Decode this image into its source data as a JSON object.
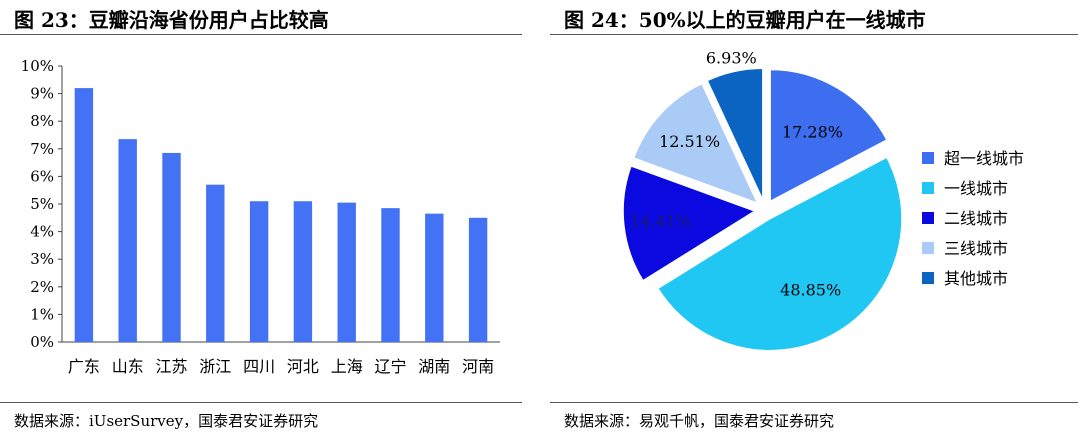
{
  "left": {
    "title": "图 23：豆瓣沿海省份用户占比较高",
    "source": "数据来源：iUserSurvey，国泰君安证券研究"
  },
  "right": {
    "title": "图 24：50%以上的豆瓣用户在一线城市",
    "source": "数据来源：易观千帆，国泰君安证券研究"
  },
  "chart_data": [
    {
      "type": "bar",
      "title": "图 23：豆瓣沿海省份用户占比较高",
      "categories": [
        "广东",
        "山东",
        "江苏",
        "浙江",
        "四川",
        "河北",
        "上海",
        "辽宁",
        "湖南",
        "河南"
      ],
      "values": [
        9.2,
        7.35,
        6.85,
        5.7,
        5.1,
        5.1,
        5.05,
        4.85,
        4.65,
        4.5
      ],
      "ylim": [
        0,
        10
      ],
      "yticks": [
        "0%",
        "1%",
        "2%",
        "3%",
        "4%",
        "5%",
        "6%",
        "7%",
        "8%",
        "9%",
        "10%"
      ],
      "grid": false,
      "color": "#4472f4"
    },
    {
      "type": "pie",
      "title": "图 24：50%以上的豆瓣用户在一线城市",
      "legend_position": "right",
      "slices": [
        {
          "label": "超一线城市",
          "value": 17.28,
          "display": "17.28%",
          "color": "#3d6ef0"
        },
        {
          "label": "一线城市",
          "value": 48.85,
          "display": "48.85%",
          "color": "#1fc7f2"
        },
        {
          "label": "二线城市",
          "value": 14.41,
          "display": "14.41%",
          "color": "#0a0ae0"
        },
        {
          "label": "三线城市",
          "value": 12.51,
          "display": "12.51%",
          "color": "#a9cbf5"
        },
        {
          "label": "其他城市",
          "value": 6.93,
          "display": "6.93%",
          "color": "#0b63c2"
        }
      ]
    }
  ]
}
